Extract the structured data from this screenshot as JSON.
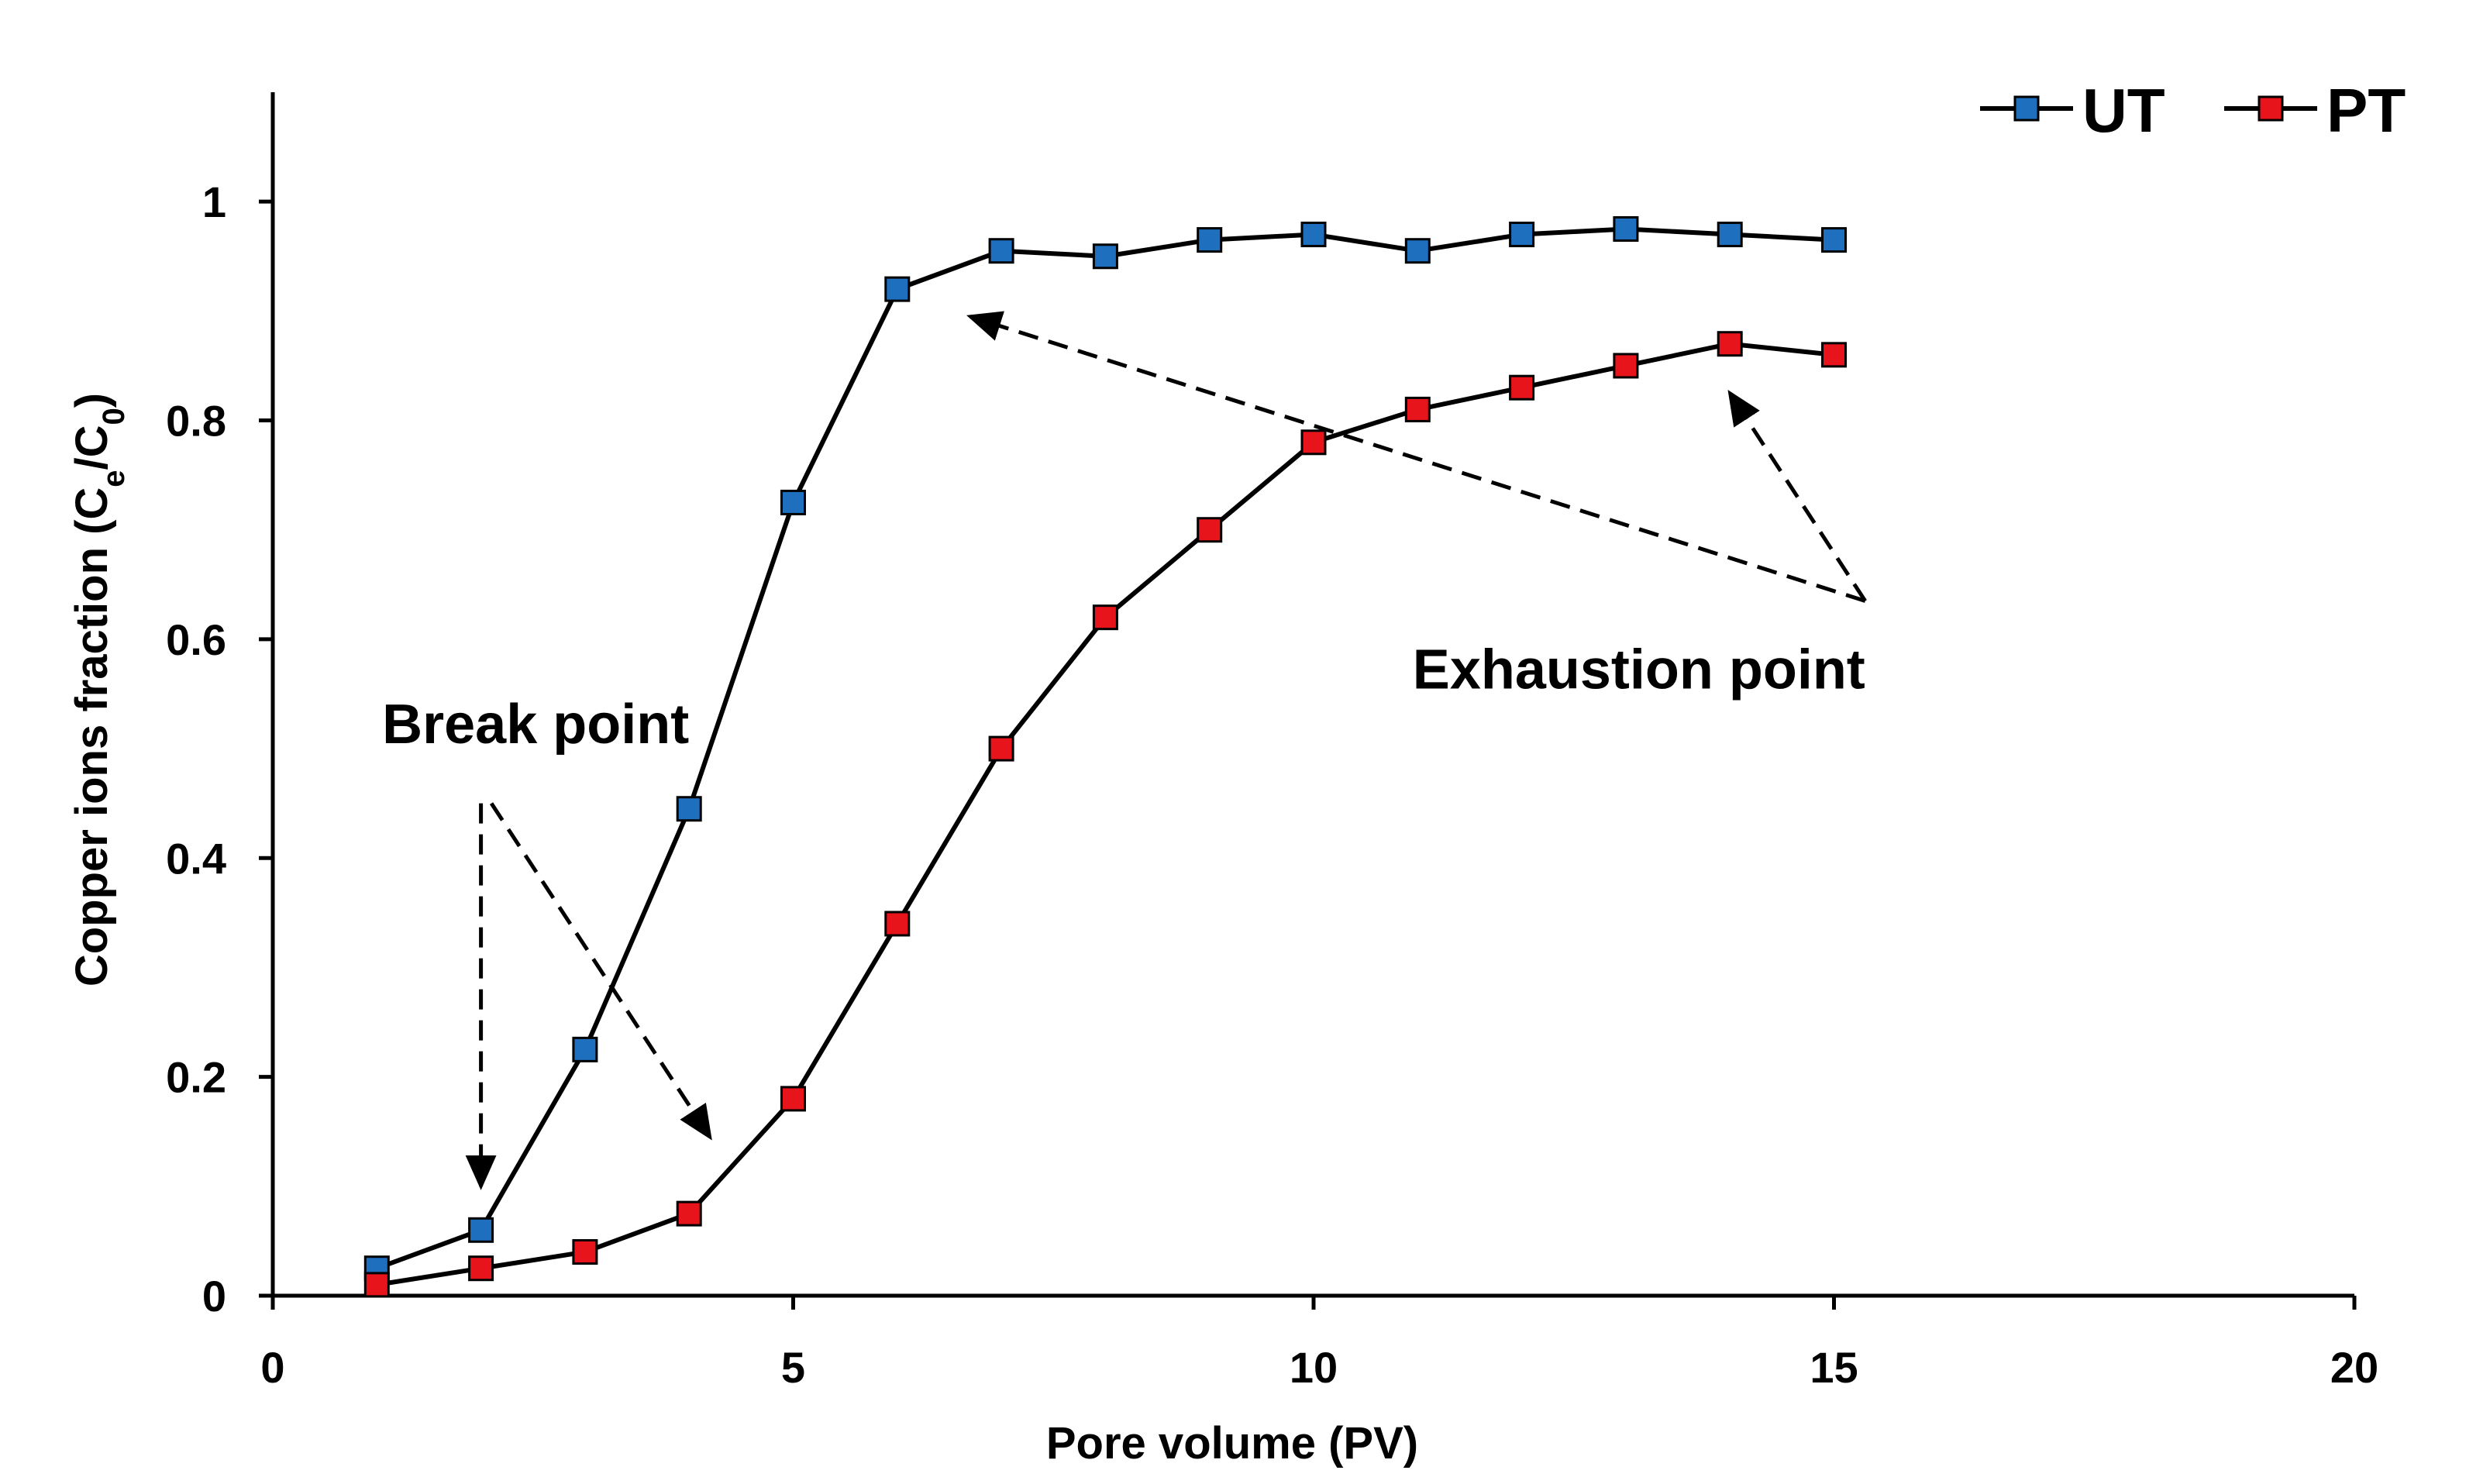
{
  "chart_data": {
    "type": "line",
    "xlabel": "Pore volume (PV)",
    "ylabel": {
      "prefix": "Copper ions fraction (C",
      "sub1": "e",
      "mid": "/C",
      "sub2": "0",
      "suffix": ")"
    },
    "xlim": [
      0,
      20
    ],
    "ylim": [
      0,
      1.1
    ],
    "x_ticks": [
      0,
      5,
      10,
      15,
      20
    ],
    "x_tick_labels": [
      "0",
      "5",
      "10",
      "15",
      "20"
    ],
    "y_ticks": [
      0,
      0.2,
      0.4,
      0.6,
      0.8,
      1
    ],
    "y_tick_labels": [
      "0",
      "0.2",
      "0.4",
      "0.6",
      "0.8",
      "1"
    ],
    "grid": false,
    "legend_position": "top-right",
    "x": [
      1,
      2,
      3,
      4,
      5,
      6,
      7,
      8,
      9,
      10,
      11,
      12,
      13,
      14,
      15
    ],
    "series": [
      {
        "name": "UT",
        "color": "#1f6fbf",
        "values": [
          0.025,
          0.06,
          0.225,
          0.445,
          0.725,
          0.92,
          0.955,
          0.95,
          0.965,
          0.97,
          0.955,
          0.97,
          0.975,
          0.97,
          0.965
        ]
      },
      {
        "name": "PT",
        "color": "#e8141b",
        "values": [
          0.01,
          0.025,
          0.04,
          0.075,
          0.18,
          0.34,
          0.5,
          0.62,
          0.7,
          0.78,
          0.81,
          0.83,
          0.85,
          0.87,
          0.86
        ]
      }
    ],
    "annotations": [
      {
        "text": "Break point",
        "anchor": [
          4.0,
          0.505
        ],
        "arrows": [
          {
            "from": [
              2,
              0.45
            ],
            "to": [
              2,
              0.1
            ]
          },
          {
            "from": [
              2.1,
              0.45
            ],
            "to": [
              4.2,
              0.145
            ]
          }
        ]
      },
      {
        "text": "Exhaustion point",
        "anchor": [
          15.3,
          0.555
        ],
        "arrows": [
          {
            "from": [
              15.3,
              0.635
            ],
            "to": [
              6.7,
              0.895
            ]
          },
          {
            "from": [
              15.3,
              0.635
            ],
            "to": [
              14.0,
              0.825
            ]
          }
        ]
      }
    ]
  }
}
